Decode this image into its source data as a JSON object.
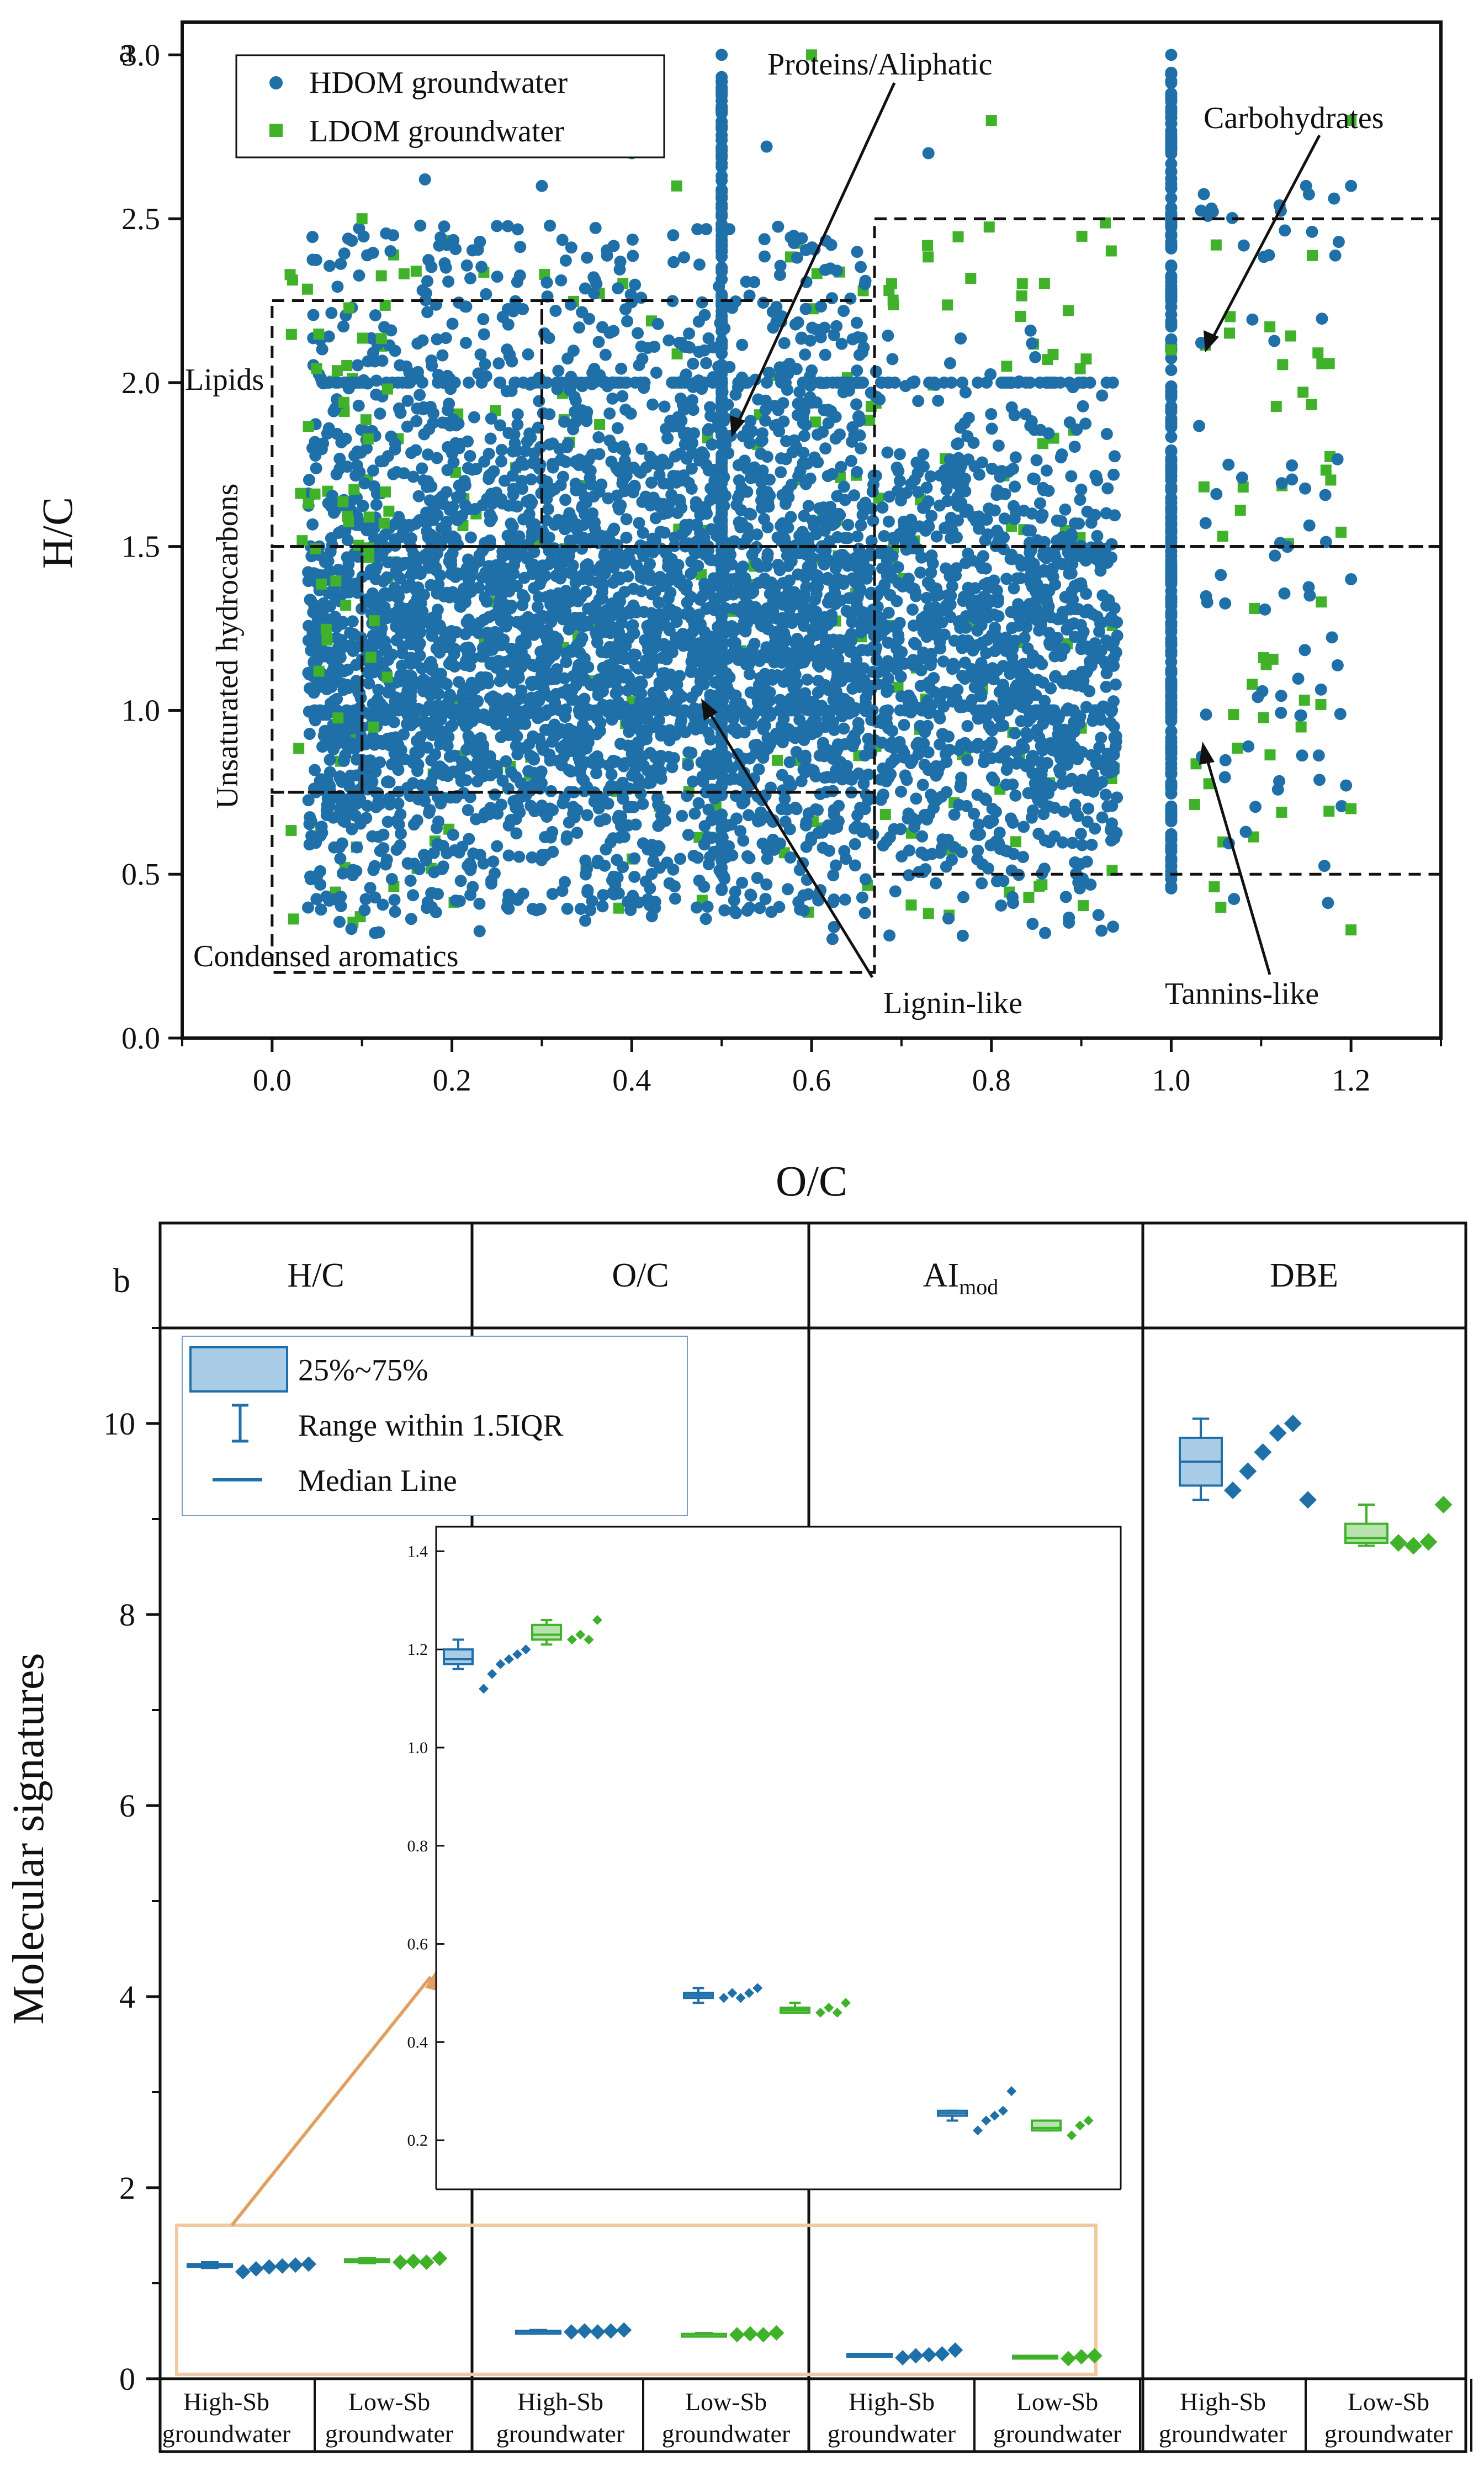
{
  "colors": {
    "hdom": "#1f6fa8",
    "ldom": "#3fb22a",
    "inset_arrow": "#e0a060",
    "highlight_box": "#f0c9a0"
  },
  "panel_a": {
    "label": "a",
    "chart_data": {
      "type": "scatter",
      "xlabel": "O/C",
      "ylabel": "H/C",
      "xlim": [
        -0.1,
        1.3
      ],
      "ylim": [
        0.0,
        3.1
      ],
      "xticks": [
        "0.0",
        "0.2",
        "0.4",
        "0.6",
        "0.8",
        "1.0",
        "1.2"
      ],
      "yticks": [
        "0.0",
        "0.5",
        "1.0",
        "1.5",
        "2.0",
        "2.5",
        "3.0"
      ],
      "legend": {
        "placement": "top-left",
        "entries": [
          "HDOM groundwater",
          "LDOM groundwater"
        ]
      },
      "regions": [
        {
          "label": "Lipids",
          "o_c": [
            0.0,
            0.3
          ],
          "h_c": [
            1.5,
            2.25
          ]
        },
        {
          "label": "Proteins/Aliphatic",
          "o_c": [
            0.3,
            0.67
          ],
          "h_c": [
            1.5,
            2.25
          ]
        },
        {
          "label": "Carbohydrates",
          "o_c": [
            0.67,
            1.3
          ],
          "h_c": [
            1.5,
            2.5
          ]
        },
        {
          "label": "Unsaturated hydrocarbons",
          "o_c": [
            0.0,
            0.1
          ],
          "h_c": [
            0.75,
            1.5
          ]
        },
        {
          "label": "Lignin-like",
          "o_c": [
            0.1,
            0.67
          ],
          "h_c": [
            0.75,
            1.5
          ]
        },
        {
          "label": "Tannins-like",
          "o_c": [
            0.67,
            1.3
          ],
          "h_c": [
            0.5,
            1.5
          ]
        },
        {
          "label": "Condensed aromatics",
          "o_c": [
            0.0,
            0.67
          ],
          "h_c": [
            0.2,
            0.75
          ]
        }
      ],
      "series": [
        {
          "name": "HDOM groundwater",
          "summary": "dense cloud, O/C 0.02-0.95, H/C 0.3-3.0; vertical bands at O/C 0.5 and 1.0",
          "sample_points": [
            [
              0.5,
              3.0
            ],
            [
              0.5,
              2.83
            ],
            [
              1.0,
              3.0
            ],
            [
              1.0,
              2.83
            ],
            [
              0.17,
              2.62
            ],
            [
              0.3,
              2.6
            ],
            [
              0.4,
              2.7
            ],
            [
              0.55,
              2.72
            ],
            [
              0.73,
              2.7
            ],
            [
              1.15,
              2.6
            ],
            [
              1.2,
              2.6
            ],
            [
              1.2,
              1.4
            ]
          ]
        },
        {
          "name": "LDOM groundwater",
          "summary": "sparser, spread across O/C 0.02-1.2, H/C 0.33-3.0",
          "sample_points": [
            [
              0.6,
              3.0
            ],
            [
              0.8,
              2.8
            ],
            [
              1.2,
              2.8
            ],
            [
              0.45,
              2.6
            ],
            [
              1.05,
              2.42
            ],
            [
              0.1,
              2.5
            ],
            [
              1.2,
              0.33
            ],
            [
              0.73,
              0.38
            ],
            [
              1.0,
              2.1
            ],
            [
              1.2,
              0.7
            ]
          ]
        }
      ],
      "annotations": [
        "Proteins/Aliphatic",
        "Carbohydrates",
        "Lipids",
        "Unsaturated hydrocarbons",
        "Lignin-like",
        "Tannins-like",
        "Condensed aromatics"
      ]
    }
  },
  "panel_b": {
    "label": "b",
    "chart_data": {
      "type": "box",
      "ylabel": "Molecular signatures",
      "ylim": [
        0,
        11
      ],
      "yticks": [
        "0",
        "2",
        "4",
        "6",
        "8",
        "10"
      ],
      "headers": [
        "H/C",
        "O/C",
        "AI",
        "DBE"
      ],
      "header_sub": "mod",
      "groups": [
        "High-Sb groundwater",
        "Low-Sb groundwater",
        "High-Sb groundwater",
        "Low-Sb groundwater",
        "High-Sb groundwater",
        "Low-Sb groundwater",
        "High-Sb groundwater",
        "Low-Sb groundwater"
      ],
      "group_lines": [
        [
          "High-Sb",
          "groundwater"
        ],
        [
          "Low-Sb",
          "groundwater"
        ],
        [
          "High-Sb",
          "groundwater"
        ],
        [
          "Low-Sb",
          "groundwater"
        ],
        [
          "High-Sb",
          "groundwater"
        ],
        [
          "Low-Sb",
          "groundwater"
        ],
        [
          "High-Sb",
          "groundwater"
        ],
        [
          "Low-Sb",
          "groundwater"
        ]
      ],
      "legend": [
        "25%~75%",
        "Range within 1.5IQR",
        "Median Line"
      ],
      "boxes": [
        {
          "metric": "H/C",
          "group": "High-Sb",
          "q1": 1.17,
          "median": 1.18,
          "q3": 1.2,
          "whisker": [
            1.16,
            1.22
          ],
          "points": [
            1.12,
            1.15,
            1.17,
            1.18,
            1.19,
            1.2
          ]
        },
        {
          "metric": "H/C",
          "group": "Low-Sb",
          "q1": 1.22,
          "median": 1.23,
          "q3": 1.25,
          "whisker": [
            1.21,
            1.26
          ],
          "points": [
            1.22,
            1.23,
            1.22,
            1.26
          ]
        },
        {
          "metric": "O/C",
          "group": "High-Sb",
          "q1": 0.49,
          "median": 0.495,
          "q3": 0.5,
          "whisker": [
            0.48,
            0.51
          ],
          "points": [
            0.49,
            0.5,
            0.49,
            0.5,
            0.51
          ]
        },
        {
          "metric": "O/C",
          "group": "Low-Sb",
          "q1": 0.46,
          "median": 0.465,
          "q3": 0.47,
          "whisker": [
            0.46,
            0.48
          ],
          "points": [
            0.46,
            0.47,
            0.46,
            0.48
          ]
        },
        {
          "metric": "AI_mod",
          "group": "High-Sb",
          "q1": 0.25,
          "median": 0.255,
          "q3": 0.26,
          "whisker": [
            0.24,
            0.26
          ],
          "points": [
            0.22,
            0.24,
            0.25,
            0.26,
            0.3
          ]
        },
        {
          "metric": "AI_mod",
          "group": "Low-Sb",
          "q1": 0.22,
          "median": 0.225,
          "q3": 0.24,
          "whisker": [
            0.22,
            0.24
          ],
          "points": [
            0.21,
            0.23,
            0.24
          ]
        },
        {
          "metric": "DBE",
          "group": "High-Sb",
          "q1": 9.35,
          "median": 9.6,
          "q3": 9.85,
          "whisker": [
            9.2,
            10.05
          ],
          "points": [
            9.3,
            9.5,
            9.7,
            9.9,
            10.0,
            9.2
          ]
        },
        {
          "metric": "DBE",
          "group": "Low-Sb",
          "q1": 8.75,
          "median": 8.8,
          "q3": 8.95,
          "whisker": [
            8.72,
            9.15
          ],
          "points": [
            8.75,
            8.72,
            8.76,
            9.15
          ]
        }
      ],
      "inset": {
        "ylim": [
          0.1,
          1.45
        ],
        "yticks": [
          "0.2",
          "0.4",
          "0.6",
          "0.8",
          "1.0",
          "1.2",
          "1.4"
        ]
      }
    }
  }
}
